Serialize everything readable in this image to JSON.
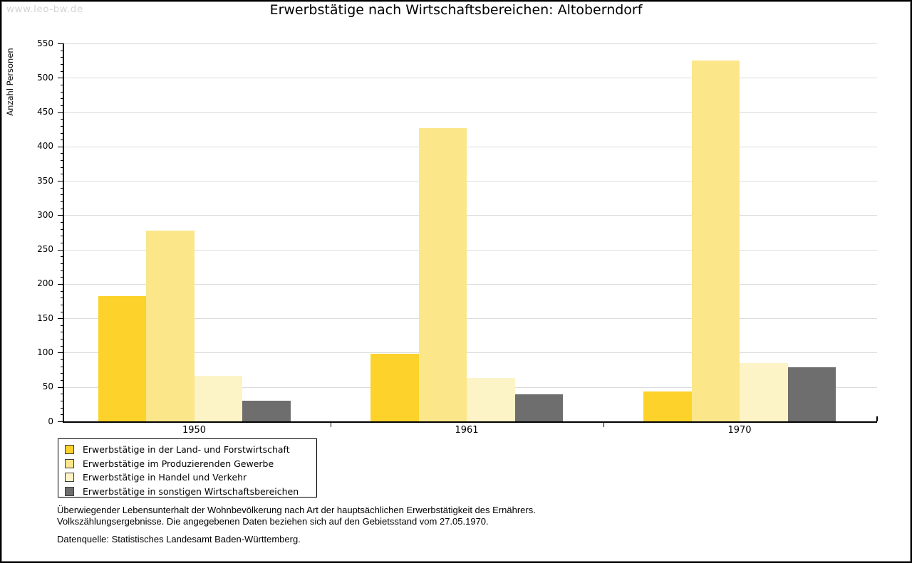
{
  "watermark": "www.leo-bw.de",
  "chart_data": {
    "type": "bar",
    "title": "Erwerbstätige nach Wirtschaftsbereichen: Altoberndorf",
    "ylabel": "Anzahl Personen",
    "xlabel": "",
    "categories": [
      "1950",
      "1961",
      "1970"
    ],
    "series": [
      {
        "name": "Erwerbstätige in der Land- und Forstwirtschaft",
        "color": "#fcd22b",
        "values": [
          182,
          98,
          44
        ]
      },
      {
        "name": "Erwerbstätige im Produzierenden Gewerbe",
        "color": "#fbe78a",
        "values": [
          278,
          427,
          525
        ]
      },
      {
        "name": "Erwerbstätige in Handel und Verkehr",
        "color": "#fcf3c6",
        "values": [
          66,
          63,
          85
        ]
      },
      {
        "name": "Erwerbstätige in sonstigen Wirtschaftsbereichen",
        "color": "#6e6e6e",
        "values": [
          30,
          39,
          79
        ]
      }
    ],
    "ylim": [
      0,
      550
    ],
    "ytick_step": 50,
    "y_minor_tick_step": 10,
    "grid": true,
    "gridline_color": "#dcdcdc",
    "axis_color": "#000000",
    "legend_position": "bottom-left"
  },
  "footer": {
    "line1": "Überwiegender Lebensunterhalt der Wohnbevölkerung nach Art der hauptsächlichen Erwerbstätigkeit des Ernährers.",
    "line2": "Volkszählungsergebnisse. Die angegebenen Daten beziehen sich auf den Gebietsstand vom 27.05.1970.",
    "source": "Datenquelle: Statistisches Landesamt Baden-Württemberg."
  }
}
